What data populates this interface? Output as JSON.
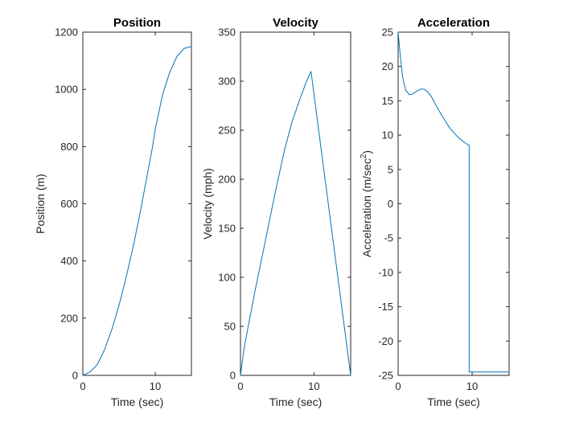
{
  "chart_data": [
    {
      "type": "line",
      "title": "Position",
      "xlabel": "Time (sec)",
      "ylabel": "Position (m)",
      "xlim": [
        0,
        15
      ],
      "ylim": [
        0,
        1200
      ],
      "xticks": [
        0,
        10
      ],
      "yticks": [
        0,
        200,
        400,
        600,
        800,
        1000,
        1200
      ],
      "grid": false,
      "series": [
        {
          "color": "#0072BD",
          "x": [
            0,
            1,
            2,
            3,
            4,
            5,
            6,
            7,
            8,
            9,
            9.6,
            10,
            11,
            12,
            13,
            14,
            15
          ],
          "y": [
            0,
            12,
            38,
            90,
            160,
            245,
            345,
            455,
            580,
            715,
            795,
            860,
            980,
            1060,
            1115,
            1143,
            1150
          ]
        }
      ]
    },
    {
      "type": "line",
      "title": "Velocity",
      "xlabel": "Time (sec)",
      "ylabel": "Velocity (mph)",
      "xlim": [
        0,
        15
      ],
      "ylim": [
        0,
        350
      ],
      "xticks": [
        0,
        10
      ],
      "yticks": [
        0,
        50,
        100,
        150,
        200,
        250,
        300,
        350
      ],
      "grid": false,
      "series": [
        {
          "color": "#0072BD",
          "x": [
            0,
            0.5,
            1,
            2,
            3,
            4,
            5,
            6,
            7,
            8,
            9,
            9.6,
            15
          ],
          "y": [
            0,
            28,
            48,
            87,
            123,
            160,
            196,
            230,
            258,
            280,
            300,
            310,
            0
          ]
        }
      ]
    },
    {
      "type": "line",
      "title": "Acceleration",
      "xlabel": "Time (sec)",
      "ylabel": "Acceleration (m/sec",
      "ylabel_superscript": "2",
      "ylabel_suffix": ")",
      "xlim": [
        0,
        15
      ],
      "ylim": [
        -25,
        25
      ],
      "xticks": [
        0,
        10
      ],
      "yticks": [
        -25,
        -20,
        -15,
        -10,
        -5,
        0,
        5,
        10,
        15,
        20,
        25
      ],
      "grid": false,
      "series": [
        {
          "color": "#0072BD",
          "x": [
            0,
            0.3,
            0.6,
            1,
            1.5,
            2,
            2.5,
            3,
            3.5,
            4,
            4.5,
            5,
            5.5,
            6,
            7,
            8,
            9,
            9.6,
            9.6,
            15
          ],
          "y": [
            25,
            21.5,
            18.5,
            16.6,
            15.9,
            16.0,
            16.4,
            16.7,
            16.7,
            16.3,
            15.6,
            14.6,
            13.6,
            12.7,
            11.0,
            9.8,
            8.9,
            8.5,
            -24.5,
            -24.5
          ]
        }
      ]
    }
  ]
}
